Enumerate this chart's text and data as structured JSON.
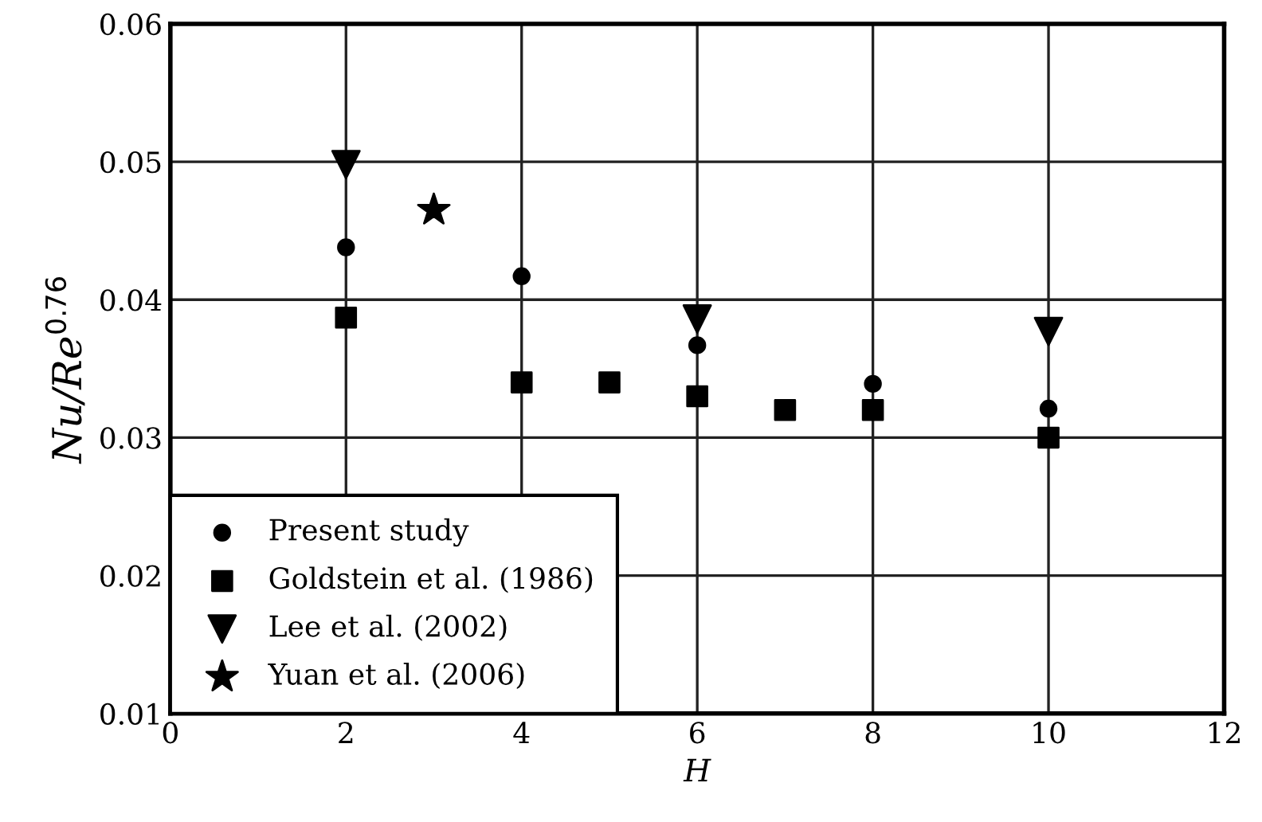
{
  "chart_data": {
    "type": "scatter",
    "xlabel": "H",
    "ylabel": "Nu/Re$^{0.76}$",
    "xlim": [
      0,
      12
    ],
    "ylim": [
      0.01,
      0.06
    ],
    "xticks": [
      0,
      2,
      4,
      6,
      8,
      10,
      12
    ],
    "yticks": [
      0.01,
      0.02,
      0.03,
      0.04,
      0.05,
      0.06
    ],
    "grid": true,
    "legend": "bottom left",
    "series": [
      {
        "name": "Present study",
        "color": "#000000",
        "marker": "circle",
        "x": [
          2,
          4,
          6,
          8,
          10
        ],
        "values": [
          0.0438,
          0.0417,
          0.0367,
          0.0339,
          0.0321
        ]
      },
      {
        "name": "Goldstein et al. (1986)",
        "color": "#000000",
        "marker": "square",
        "x": [
          2,
          4,
          5,
          6,
          7,
          8,
          10
        ],
        "values": [
          0.0387,
          0.034,
          0.034,
          0.033,
          0.032,
          0.032,
          0.03
        ]
      },
      {
        "name": "Lee et al. (2002)",
        "color": "#000000",
        "marker": "triangle",
        "x": [
          2,
          6,
          10
        ],
        "values": [
          0.0498,
          0.0386,
          0.0377
        ]
      },
      {
        "name": "Yuan et al. (2006)",
        "color": "#000000",
        "marker": "star",
        "x": [
          3
        ],
        "values": [
          0.0465
        ]
      }
    ]
  }
}
